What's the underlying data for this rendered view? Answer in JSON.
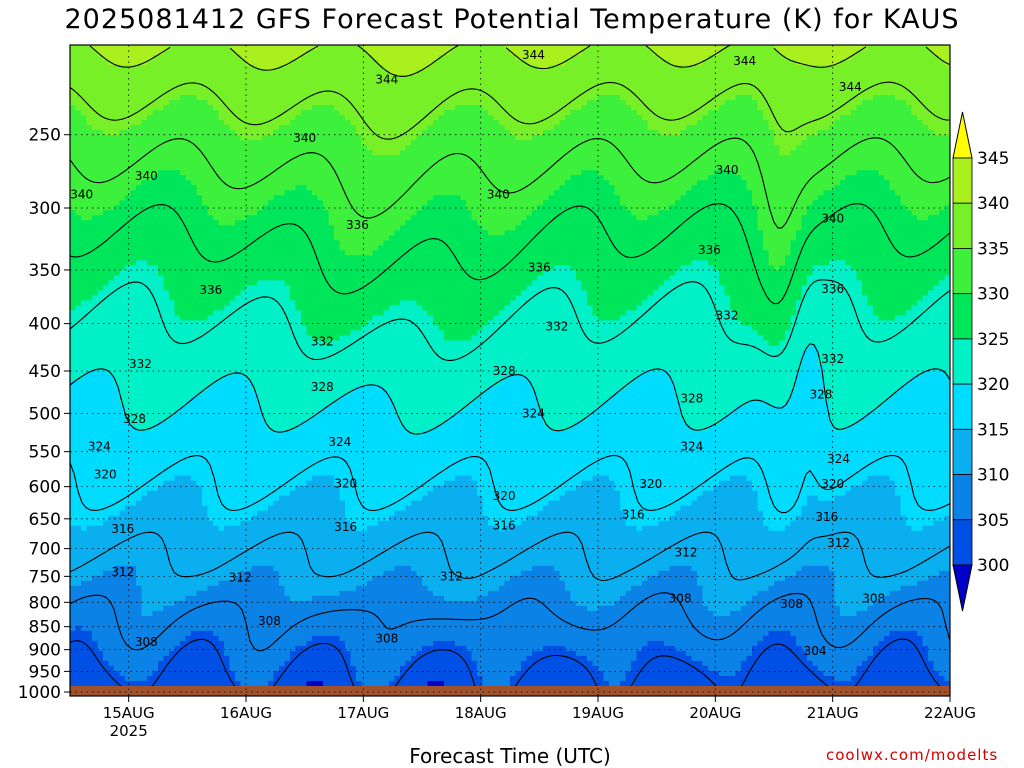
{
  "title": "2025081412 GFS Forecast Potential Temperature (K) for KAUS",
  "x_axis_label": "Forecast Time (UTC)",
  "credit": "coolwx.com/modelts",
  "chart_data": {
    "type": "heatmap",
    "title": "2025081412 GFS Forecast Potential Temperature (K) for KAUS",
    "xlabel": "Forecast Time (UTC)",
    "ylabel": "",
    "x_tick_labels": [
      "15AUG",
      "16AUG",
      "17AUG",
      "18AUG",
      "19AUG",
      "20AUG",
      "21AUG",
      "22AUG"
    ],
    "x_tick_sublabel": "2025",
    "xlim_days": [
      14.5,
      22.0
    ],
    "y_ticks_hpa": [
      250,
      300,
      350,
      400,
      450,
      500,
      550,
      600,
      650,
      700,
      750,
      800,
      850,
      900,
      950,
      1000
    ],
    "ylim_hpa": [
      200,
      1010
    ],
    "y_scale": "log",
    "colorbar": {
      "unit": "K",
      "levels": [
        300,
        305,
        310,
        315,
        320,
        325,
        330,
        335,
        340,
        345
      ],
      "labels": [
        "300",
        "305",
        "310",
        "315",
        "320",
        "325",
        "330",
        "335",
        "340",
        "345"
      ],
      "colors": [
        "#0000c8",
        "#0050e6",
        "#0a82e6",
        "#0aaff0",
        "#00dcff",
        "#00f0c8",
        "#00e65a",
        "#3cf03c",
        "#78f028",
        "#aaf01e",
        "#ffff00"
      ]
    },
    "contour_labels": [
      {
        "value": "344",
        "x_day": 18.45,
        "p_hpa": 205
      },
      {
        "value": "344",
        "x_day": 20.25,
        "p_hpa": 208
      },
      {
        "value": "344",
        "x_day": 17.2,
        "p_hpa": 218
      },
      {
        "value": "344",
        "x_day": 21.15,
        "p_hpa": 222
      },
      {
        "value": "340",
        "x_day": 16.5,
        "p_hpa": 252
      },
      {
        "value": "340",
        "x_day": 15.15,
        "p_hpa": 277
      },
      {
        "value": "340",
        "x_day": 14.6,
        "p_hpa": 290
      },
      {
        "value": "340",
        "x_day": 18.15,
        "p_hpa": 290
      },
      {
        "value": "340",
        "x_day": 20.1,
        "p_hpa": 273
      },
      {
        "value": "340",
        "x_day": 21.0,
        "p_hpa": 308
      },
      {
        "value": "336",
        "x_day": 16.95,
        "p_hpa": 313
      },
      {
        "value": "336",
        "x_day": 18.5,
        "p_hpa": 348
      },
      {
        "value": "336",
        "x_day": 19.95,
        "p_hpa": 333
      },
      {
        "value": "336",
        "x_day": 15.7,
        "p_hpa": 368
      },
      {
        "value": "336",
        "x_day": 21.0,
        "p_hpa": 367
      },
      {
        "value": "332",
        "x_day": 18.65,
        "p_hpa": 403
      },
      {
        "value": "332",
        "x_day": 20.1,
        "p_hpa": 392
      },
      {
        "value": "332",
        "x_day": 16.65,
        "p_hpa": 418
      },
      {
        "value": "332",
        "x_day": 15.1,
        "p_hpa": 442
      },
      {
        "value": "332",
        "x_day": 21.0,
        "p_hpa": 437
      },
      {
        "value": "328",
        "x_day": 18.2,
        "p_hpa": 450
      },
      {
        "value": "328",
        "x_day": 16.65,
        "p_hpa": 468
      },
      {
        "value": "328",
        "x_day": 19.8,
        "p_hpa": 482
      },
      {
        "value": "328",
        "x_day": 20.9,
        "p_hpa": 477
      },
      {
        "value": "328",
        "x_day": 15.05,
        "p_hpa": 507
      },
      {
        "value": "324",
        "x_day": 18.45,
        "p_hpa": 500
      },
      {
        "value": "324",
        "x_day": 16.8,
        "p_hpa": 537
      },
      {
        "value": "324",
        "x_day": 14.75,
        "p_hpa": 543
      },
      {
        "value": "324",
        "x_day": 19.8,
        "p_hpa": 543
      },
      {
        "value": "324",
        "x_day": 21.05,
        "p_hpa": 560
      },
      {
        "value": "320",
        "x_day": 14.8,
        "p_hpa": 582
      },
      {
        "value": "320",
        "x_day": 16.85,
        "p_hpa": 595
      },
      {
        "value": "320",
        "x_day": 18.2,
        "p_hpa": 614
      },
      {
        "value": "320",
        "x_day": 19.45,
        "p_hpa": 596
      },
      {
        "value": "320",
        "x_day": 21.0,
        "p_hpa": 596
      },
      {
        "value": "316",
        "x_day": 19.3,
        "p_hpa": 643
      },
      {
        "value": "316",
        "x_day": 20.95,
        "p_hpa": 647
      },
      {
        "value": "316",
        "x_day": 16.85,
        "p_hpa": 663
      },
      {
        "value": "316",
        "x_day": 18.2,
        "p_hpa": 661
      },
      {
        "value": "316",
        "x_day": 14.95,
        "p_hpa": 667
      },
      {
        "value": "312",
        "x_day": 21.05,
        "p_hpa": 690
      },
      {
        "value": "312",
        "x_day": 19.75,
        "p_hpa": 707
      },
      {
        "value": "312",
        "x_day": 14.95,
        "p_hpa": 742
      },
      {
        "value": "312",
        "x_day": 15.95,
        "p_hpa": 752
      },
      {
        "value": "312",
        "x_day": 17.75,
        "p_hpa": 750
      },
      {
        "value": "308",
        "x_day": 19.7,
        "p_hpa": 792
      },
      {
        "value": "308",
        "x_day": 20.65,
        "p_hpa": 803
      },
      {
        "value": "308",
        "x_day": 21.35,
        "p_hpa": 792
      },
      {
        "value": "308",
        "x_day": 16.2,
        "p_hpa": 838
      },
      {
        "value": "308",
        "x_day": 15.15,
        "p_hpa": 883
      },
      {
        "value": "308",
        "x_day": 17.2,
        "p_hpa": 875
      },
      {
        "value": "304",
        "x_day": 20.85,
        "p_hpa": 903
      }
    ],
    "surface_fill_color": "#a0522d",
    "grid": true
  }
}
